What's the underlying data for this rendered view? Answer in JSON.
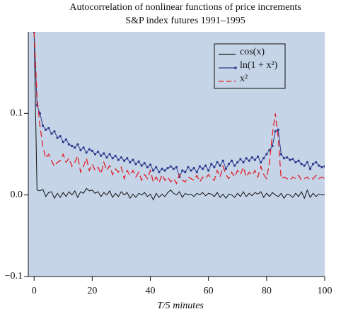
{
  "chart_data": {
    "type": "line",
    "title": "Autocorrelation of nonlinear functions of price increments",
    "subtitle": "S&P index futures 1991–1995",
    "x_label": "T/5 minutes",
    "xlim": [
      -2,
      100
    ],
    "xticks": [
      0,
      20,
      40,
      60,
      80,
      100
    ],
    "ylim": [
      -0.1,
      0.2
    ],
    "yticks": [
      {
        "value": -0.1,
        "label": "−0.1"
      },
      {
        "value": 0,
        "label": "0.0"
      },
      0.1
    ],
    "legend": "upper right",
    "x": [
      0,
      1,
      2,
      3,
      4,
      5,
      6,
      7,
      8,
      9,
      10,
      11,
      12,
      13,
      14,
      15,
      16,
      17,
      18,
      19,
      20,
      21,
      22,
      23,
      24,
      25,
      26,
      27,
      28,
      29,
      30,
      31,
      32,
      33,
      34,
      35,
      36,
      37,
      38,
      39,
      40,
      41,
      42,
      43,
      44,
      45,
      46,
      47,
      48,
      49,
      50,
      51,
      52,
      53,
      54,
      55,
      56,
      57,
      58,
      59,
      60,
      61,
      62,
      63,
      64,
      65,
      66,
      67,
      68,
      69,
      70,
      71,
      72,
      73,
      74,
      75,
      76,
      77,
      78,
      79,
      80,
      81,
      82,
      83,
      84,
      85,
      86,
      87,
      88,
      89,
      90,
      91,
      92,
      93,
      94,
      95,
      96,
      97,
      98,
      99,
      100
    ],
    "series": [
      {
        "name": "cos(x)",
        "color": "#111111",
        "style": "solid",
        "markers": false,
        "values": [
          0.2,
          0.006,
          0.005,
          0.007,
          -0.002,
          0.003,
          0.004,
          -0.004,
          0.002,
          -0.003,
          0.003,
          -0.002,
          0.004,
          0.0,
          0.005,
          -0.003,
          0.004,
          0.002,
          0.008,
          0.005,
          0.006,
          0.002,
          0.004,
          -0.002,
          0.003,
          0.0,
          0.005,
          -0.003,
          0.002,
          -0.002,
          0.004,
          0.0,
          0.003,
          -0.004,
          0.001,
          -0.003,
          0.002,
          0.0,
          0.003,
          -0.002,
          0.001,
          -0.006,
          0.002,
          -0.003,
          0.001,
          -0.002,
          0.003,
          0.006,
          0.002,
          0.0,
          0.004,
          -0.003,
          0.002,
          0.0,
          0.001,
          -0.002,
          0.002,
          0.0,
          0.003,
          -0.001,
          0.002,
          0.001,
          -0.002,
          0.003,
          -0.003,
          0.001,
          -0.004,
          0.001,
          0.0,
          -0.003,
          0.002,
          -0.002,
          0.004,
          -0.002,
          0.002,
          -0.001,
          0.003,
          0.001,
          0.004,
          -0.003,
          0.002,
          -0.002,
          0.003,
          0.0,
          -0.002,
          0.002,
          -0.004,
          0.001,
          0.0,
          -0.003,
          0.002,
          -0.002,
          0.004,
          -0.004,
          0.006,
          -0.003,
          0.002,
          -0.002,
          0.001,
          0.0,
          0.0
        ]
      },
      {
        "name": "ln(1 + x²)",
        "color": "#2b3a8c",
        "style": "solid",
        "markers": true,
        "values": [
          0.2,
          0.11,
          0.1,
          0.085,
          0.08,
          0.082,
          0.075,
          0.078,
          0.07,
          0.072,
          0.065,
          0.068,
          0.062,
          0.06,
          0.058,
          0.062,
          0.055,
          0.058,
          0.052,
          0.056,
          0.054,
          0.05,
          0.053,
          0.048,
          0.051,
          0.046,
          0.05,
          0.045,
          0.048,
          0.043,
          0.046,
          0.042,
          0.045,
          0.04,
          0.043,
          0.038,
          0.041,
          0.036,
          0.039,
          0.034,
          0.037,
          0.03,
          0.034,
          0.028,
          0.032,
          0.03,
          0.033,
          0.035,
          0.032,
          0.034,
          0.022,
          0.03,
          0.028,
          0.034,
          0.03,
          0.033,
          0.028,
          0.035,
          0.032,
          0.036,
          0.03,
          0.038,
          0.034,
          0.04,
          0.036,
          0.042,
          0.032,
          0.038,
          0.042,
          0.036,
          0.04,
          0.044,
          0.04,
          0.045,
          0.042,
          0.046,
          0.043,
          0.047,
          0.04,
          0.045,
          0.05,
          0.055,
          0.06,
          0.078,
          0.08,
          0.05,
          0.045,
          0.046,
          0.043,
          0.044,
          0.04,
          0.042,
          0.038,
          0.036,
          0.04,
          0.032,
          0.038,
          0.04,
          0.036,
          0.034,
          0.035
        ]
      },
      {
        "name": "x²",
        "color": "#e0202a",
        "style": "dashed",
        "markers": false,
        "values": [
          0.2,
          0.12,
          0.085,
          0.06,
          0.045,
          0.05,
          0.042,
          0.035,
          0.04,
          0.042,
          0.05,
          0.04,
          0.045,
          0.035,
          0.04,
          0.048,
          0.028,
          0.035,
          0.045,
          0.03,
          0.038,
          0.03,
          0.034,
          0.026,
          0.04,
          0.03,
          0.036,
          0.025,
          0.032,
          0.028,
          0.034,
          0.02,
          0.03,
          0.024,
          0.03,
          0.022,
          0.028,
          0.018,
          0.025,
          0.02,
          0.03,
          0.016,
          0.022,
          0.015,
          0.025,
          0.018,
          0.022,
          0.016,
          0.02,
          0.014,
          0.025,
          0.018,
          0.016,
          0.022,
          0.02,
          0.018,
          0.024,
          0.016,
          0.022,
          0.02,
          0.025,
          0.02,
          0.018,
          0.03,
          0.022,
          0.035,
          0.025,
          0.02,
          0.028,
          0.022,
          0.03,
          0.025,
          0.034,
          0.022,
          0.028,
          0.024,
          0.03,
          0.022,
          0.035,
          0.025,
          0.02,
          0.04,
          0.075,
          0.1,
          0.07,
          0.02,
          0.022,
          0.02,
          0.018,
          0.022,
          0.02,
          0.024,
          0.018,
          0.02,
          0.022,
          0.018,
          0.02,
          0.024,
          0.02,
          0.022,
          0.02
        ]
      }
    ]
  }
}
